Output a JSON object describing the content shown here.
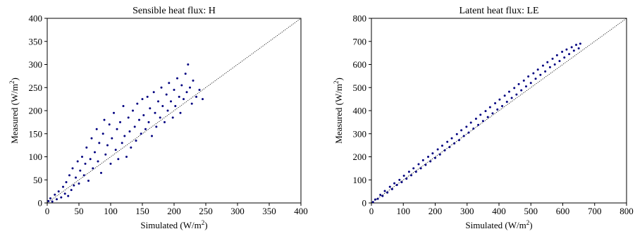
{
  "figure": {
    "point_color": "#000080"
  },
  "chart_data": [
    {
      "type": "scatter",
      "title": "Sensible heat flux: H",
      "xlabel": "Simulated (W/m",
      "ylabel": "Measured (W/m",
      "unit_superscript": "2",
      "unit_close": ")",
      "xlim": [
        0,
        400
      ],
      "ylim": [
        0,
        400
      ],
      "xticks": [
        0,
        50,
        100,
        150,
        200,
        250,
        300,
        350,
        400
      ],
      "yticks": [
        0,
        50,
        100,
        150,
        200,
        250,
        300,
        350,
        400
      ],
      "reference_line": {
        "style": "dotted",
        "from": [
          0,
          0
        ],
        "to": [
          400,
          400
        ]
      },
      "grid": false,
      "series": [
        {
          "color": "#000080",
          "points": [
            [
              2,
              4
            ],
            [
              5,
              10
            ],
            [
              8,
              3
            ],
            [
              12,
              18
            ],
            [
              15,
              8
            ],
            [
              18,
              25
            ],
            [
              22,
              12
            ],
            [
              25,
              35
            ],
            [
              28,
              20
            ],
            [
              30,
              45
            ],
            [
              33,
              15
            ],
            [
              35,
              60
            ],
            [
              38,
              28
            ],
            [
              40,
              75
            ],
            [
              42,
              38
            ],
            [
              45,
              55
            ],
            [
              48,
              90
            ],
            [
              50,
              42
            ],
            [
              52,
              70
            ],
            [
              55,
              100
            ],
            [
              58,
              60
            ],
            [
              60,
              85
            ],
            [
              62,
              120
            ],
            [
              65,
              48
            ],
            [
              68,
              95
            ],
            [
              70,
              140
            ],
            [
              72,
              75
            ],
            [
              75,
              110
            ],
            [
              78,
              160
            ],
            [
              80,
              90
            ],
            [
              82,
              130
            ],
            [
              85,
              65
            ],
            [
              88,
              150
            ],
            [
              90,
              180
            ],
            [
              92,
              105
            ],
            [
              95,
              125
            ],
            [
              98,
              170
            ],
            [
              100,
              85
            ],
            [
              102,
              140
            ],
            [
              105,
              195
            ],
            [
              108,
              115
            ],
            [
              110,
              160
            ],
            [
              112,
              95
            ],
            [
              115,
              175
            ],
            [
              118,
              130
            ],
            [
              120,
              210
            ],
            [
              122,
              145
            ],
            [
              125,
              100
            ],
            [
              128,
              185
            ],
            [
              130,
              155
            ],
            [
              132,
              120
            ],
            [
              135,
              200
            ],
            [
              138,
              165
            ],
            [
              140,
              135
            ],
            [
              142,
              215
            ],
            [
              145,
              180
            ],
            [
              148,
              150
            ],
            [
              150,
              225
            ],
            [
              152,
              190
            ],
            [
              155,
              160
            ],
            [
              158,
              230
            ],
            [
              160,
              175
            ],
            [
              162,
              205
            ],
            [
              165,
              145
            ],
            [
              168,
              240
            ],
            [
              170,
              195
            ],
            [
              172,
              165
            ],
            [
              175,
              220
            ],
            [
              178,
              185
            ],
            [
              180,
              250
            ],
            [
              182,
              210
            ],
            [
              185,
              175
            ],
            [
              188,
              235
            ],
            [
              190,
              200
            ],
            [
              192,
              260
            ],
            [
              195,
              220
            ],
            [
              198,
              185
            ],
            [
              200,
              245
            ],
            [
              202,
              210
            ],
            [
              205,
              270
            ],
            [
              208,
              230
            ],
            [
              210,
              195
            ],
            [
              212,
              255
            ],
            [
              215,
              225
            ],
            [
              218,
              280
            ],
            [
              220,
              240
            ],
            [
              222,
              300
            ],
            [
              225,
              250
            ],
            [
              228,
              215
            ],
            [
              230,
              265
            ],
            [
              235,
              230
            ],
            [
              240,
              245
            ],
            [
              245,
              225
            ]
          ]
        }
      ]
    },
    {
      "type": "scatter",
      "title": "Latent heat flux: LE",
      "xlabel": "Simulated (W/m",
      "ylabel": "Measured (W/m",
      "unit_superscript": "2",
      "unit_close": ")",
      "xlim": [
        0,
        800
      ],
      "ylim": [
        0,
        800
      ],
      "xticks": [
        0,
        100,
        200,
        300,
        400,
        500,
        600,
        700,
        800
      ],
      "yticks": [
        0,
        100,
        200,
        300,
        400,
        500,
        600,
        700,
        800
      ],
      "reference_line": {
        "style": "dotted",
        "from": [
          0,
          0
        ],
        "to": [
          800,
          800
        ]
      },
      "grid": false,
      "series": [
        {
          "color": "#000080",
          "points": [
            [
              5,
              4
            ],
            [
              12,
              15
            ],
            [
              20,
              18
            ],
            [
              28,
              35
            ],
            [
              35,
              30
            ],
            [
              42,
              52
            ],
            [
              50,
              45
            ],
            [
              58,
              70
            ],
            [
              65,
              60
            ],
            [
              72,
              85
            ],
            [
              80,
              78
            ],
            [
              88,
              100
            ],
            [
              95,
              90
            ],
            [
              102,
              118
            ],
            [
              110,
              105
            ],
            [
              118,
              135
            ],
            [
              125,
              120
            ],
            [
              132,
              150
            ],
            [
              140,
              135
            ],
            [
              148,
              168
            ],
            [
              155,
              150
            ],
            [
              162,
              185
            ],
            [
              170,
              165
            ],
            [
              178,
              200
            ],
            [
              185,
              180
            ],
            [
              192,
              215
            ],
            [
              200,
              195
            ],
            [
              208,
              232
            ],
            [
              215,
              210
            ],
            [
              222,
              248
            ],
            [
              230,
              228
            ],
            [
              238,
              265
            ],
            [
              245,
              242
            ],
            [
              252,
              280
            ],
            [
              260,
              258
            ],
            [
              268,
              298
            ],
            [
              275,
              272
            ],
            [
              282,
              315
            ],
            [
              290,
              290
            ],
            [
              298,
              330
            ],
            [
              305,
              305
            ],
            [
              312,
              348
            ],
            [
              320,
              322
            ],
            [
              328,
              365
            ],
            [
              335,
              338
            ],
            [
              342,
              382
            ],
            [
              350,
              355
            ],
            [
              358,
              398
            ],
            [
              365,
              372
            ],
            [
              372,
              415
            ],
            [
              380,
              388
            ],
            [
              388,
              432
            ],
            [
              395,
              405
            ],
            [
              402,
              448
            ],
            [
              410,
              420
            ],
            [
              418,
              465
            ],
            [
              425,
              438
            ],
            [
              432,
              482
            ],
            [
              440,
              455
            ],
            [
              448,
              498
            ],
            [
              455,
              470
            ],
            [
              462,
              515
            ],
            [
              470,
              488
            ],
            [
              478,
              530
            ],
            [
              485,
              505
            ],
            [
              492,
              548
            ],
            [
              500,
              520
            ],
            [
              508,
              562
            ],
            [
              515,
              538
            ],
            [
              522,
              578
            ],
            [
              530,
              555
            ],
            [
              538,
              595
            ],
            [
              545,
              570
            ],
            [
              552,
              610
            ],
            [
              560,
              588
            ],
            [
              568,
              625
            ],
            [
              575,
              600
            ],
            [
              582,
              640
            ],
            [
              590,
              615
            ],
            [
              598,
              655
            ],
            [
              605,
              630
            ],
            [
              612,
              665
            ],
            [
              620,
              645
            ],
            [
              628,
              675
            ],
            [
              635,
              660
            ],
            [
              642,
              685
            ],
            [
              650,
              670
            ],
            [
              655,
              690
            ]
          ]
        }
      ]
    }
  ]
}
